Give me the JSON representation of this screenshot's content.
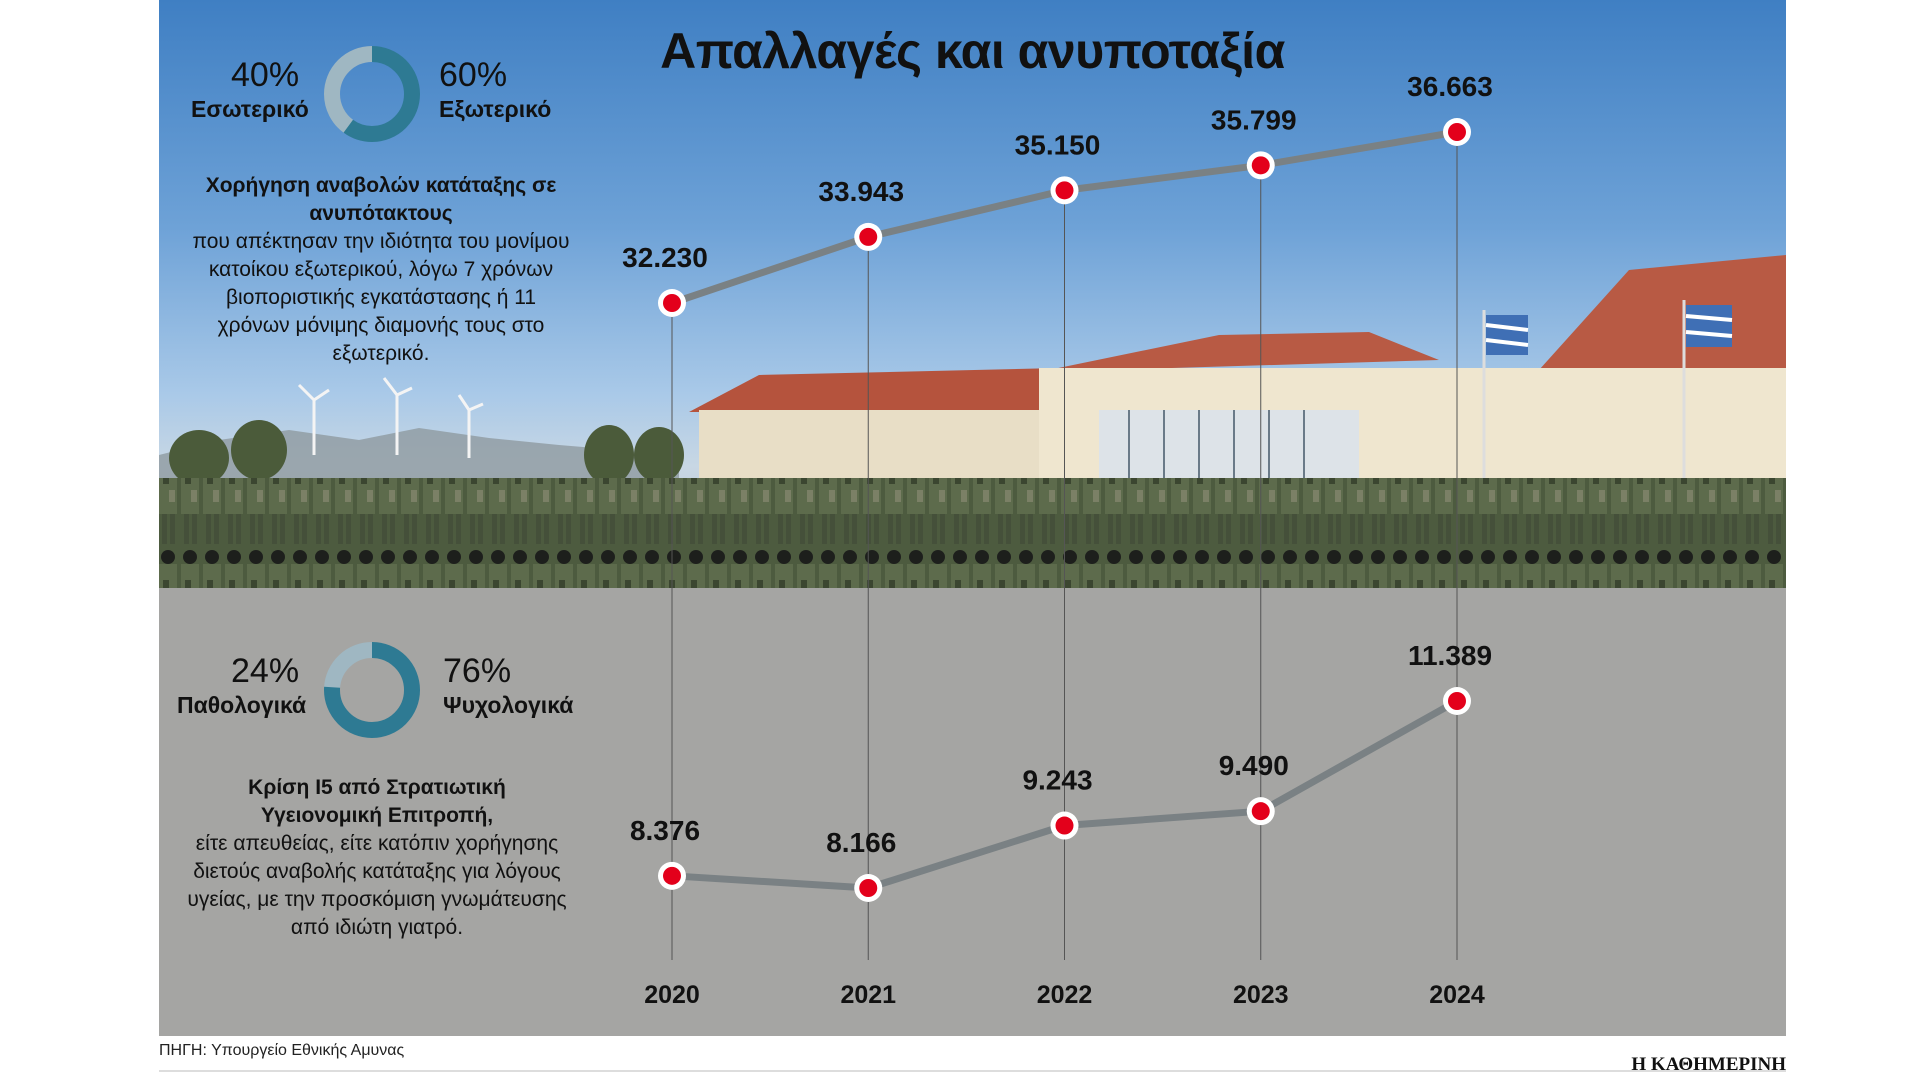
{
  "title": "Απαλλαγές και ανυποταξία",
  "source": "ΠΗΓΗ: Υπουργείο Εθνικής Αμυνας",
  "brand": "Η ΚΑΘΗΜΕΡΙΝΗ",
  "colors": {
    "line": "#7a8184",
    "marker": "#e3001b",
    "donut_dark": "#2e7a93",
    "donut_light": "#9fb7c2",
    "guide": "#555555"
  },
  "top_block": {
    "donut": {
      "left_pct": "40%",
      "left_label": "Εσωτερικό",
      "right_pct": "60%",
      "right_label": "Εξωτερικό",
      "left_value": 40,
      "right_value": 60
    },
    "heading": "Χορήγηση αναβολών κατάταξης σε ανυπότακτους",
    "text": "που απέκτησαν την ιδιότητα του μονίμου κατοίκου εξωτερικού, λόγω 7 χρόνων βιοποριστικής εγκατάστασης ή 11 χρόνων μόνιμης διαμονής τους στο εξωτερικό."
  },
  "bottom_block": {
    "donut": {
      "left_pct": "24%",
      "left_label": "Παθολογικά",
      "right_pct": "76%",
      "right_label": "Ψυχολογικά",
      "left_value": 24,
      "right_value": 76
    },
    "heading": "Κρίση Ι5 από Στρατιωτική Υγειονομική Επιτροπή,",
    "text": "είτε απευθείας, είτε κατόπιν χορήγησης διετούς αναβολής κατάταξης για λόγους υγείας, με την προσκόμιση γνωμάτευσης από ιδιώτη γιατρό."
  },
  "chart_data": {
    "type": "line",
    "categories": [
      "2020",
      "2021",
      "2022",
      "2023",
      "2024"
    ],
    "series": [
      {
        "values": [
          32230,
          33943,
          35150,
          35799,
          36663
        ],
        "labels": [
          "32.230",
          "33.943",
          "35.150",
          "35.799",
          "36.663"
        ]
      },
      {
        "values": [
          8376,
          8166,
          9243,
          9490,
          11389
        ],
        "labels": [
          "8.376",
          "8.166",
          "9.243",
          "9.490",
          "11.389"
        ]
      }
    ],
    "grid": false,
    "legend": "none"
  }
}
